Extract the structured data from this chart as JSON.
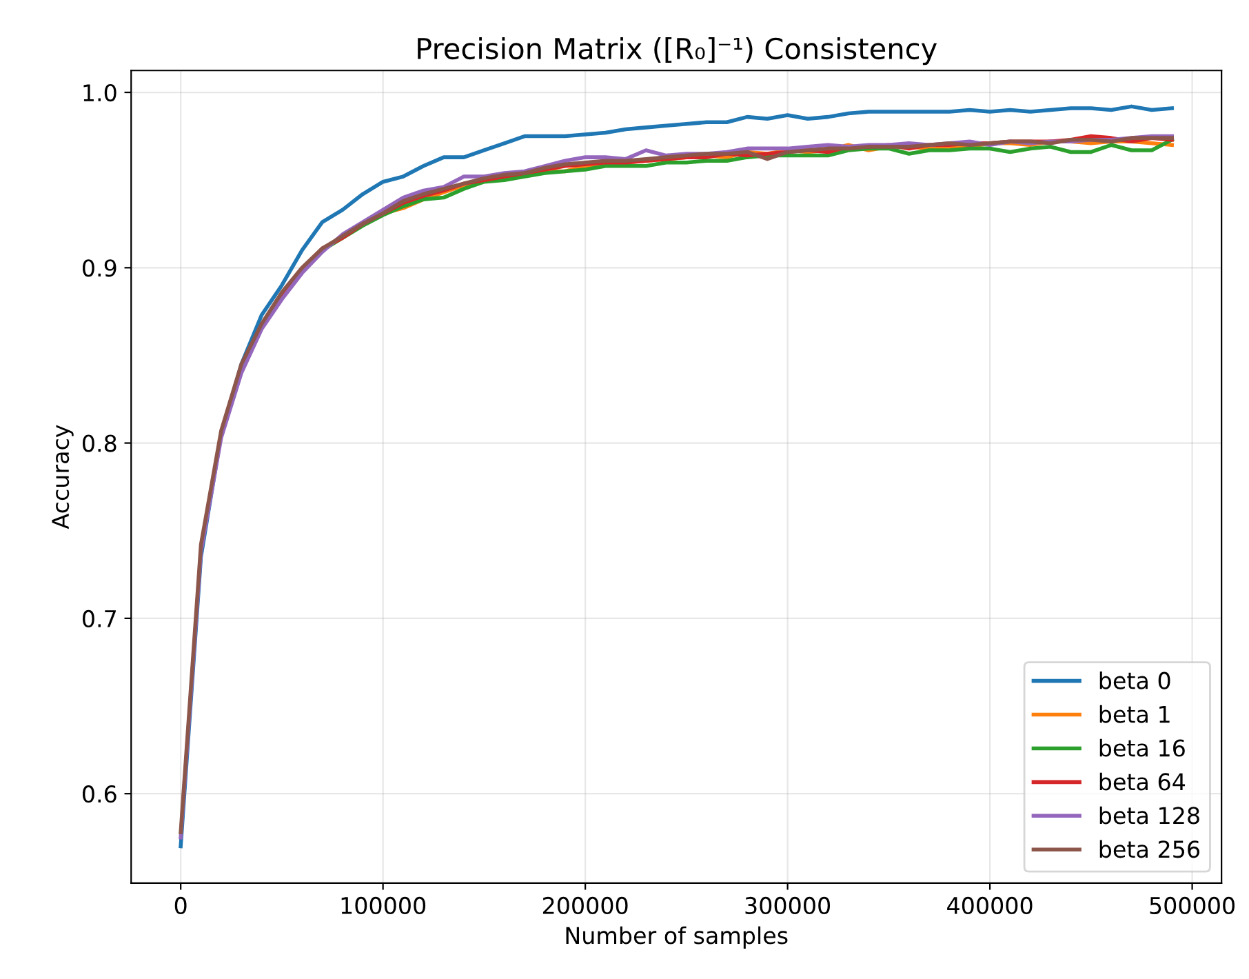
{
  "chart_data": {
    "type": "line",
    "title": "Precision Matrix ([R₀]⁻¹) Consistency",
    "xlabel": "Number of samples",
    "ylabel": "Accuracy",
    "x": [
      0,
      10000,
      20000,
      30000,
      40000,
      50000,
      60000,
      70000,
      80000,
      90000,
      100000,
      110000,
      120000,
      130000,
      140000,
      150000,
      160000,
      170000,
      180000,
      190000,
      200000,
      210000,
      220000,
      230000,
      240000,
      250000,
      260000,
      270000,
      280000,
      290000,
      300000,
      310000,
      320000,
      330000,
      340000,
      350000,
      360000,
      370000,
      380000,
      390000,
      400000,
      410000,
      420000,
      430000,
      440000,
      450000,
      460000,
      470000,
      480000,
      490000
    ],
    "series": [
      {
        "name": "beta 0",
        "color": "#1f77b4",
        "values": [
          0.57,
          0.735,
          0.805,
          0.845,
          0.873,
          0.89,
          0.91,
          0.926,
          0.933,
          0.942,
          0.949,
          0.952,
          0.958,
          0.963,
          0.963,
          0.967,
          0.971,
          0.975,
          0.975,
          0.975,
          0.976,
          0.977,
          0.979,
          0.98,
          0.981,
          0.982,
          0.983,
          0.983,
          0.986,
          0.985,
          0.987,
          0.985,
          0.986,
          0.988,
          0.989,
          0.989,
          0.989,
          0.989,
          0.989,
          0.99,
          0.989,
          0.99,
          0.989,
          0.99,
          0.991,
          0.991,
          0.99,
          0.992,
          0.99,
          0.991
        ]
      },
      {
        "name": "beta 1",
        "color": "#ff7f0e",
        "values": [
          null,
          null,
          null,
          null,
          null,
          null,
          null,
          null,
          null,
          0.925,
          0.931,
          0.934,
          0.939,
          0.943,
          0.947,
          0.95,
          0.951,
          0.953,
          0.955,
          0.955,
          0.958,
          0.959,
          0.96,
          0.961,
          0.962,
          0.963,
          0.964,
          0.963,
          0.966,
          0.965,
          0.967,
          0.966,
          0.967,
          0.97,
          0.967,
          0.969,
          0.969,
          0.968,
          0.969,
          0.969,
          0.971,
          0.971,
          0.97,
          0.972,
          0.972,
          0.971,
          0.972,
          0.972,
          0.971,
          0.97
        ]
      },
      {
        "name": "beta 16",
        "color": "#2ca02c",
        "values": [
          null,
          null,
          null,
          null,
          null,
          null,
          0.898,
          0.91,
          0.917,
          0.924,
          0.93,
          0.935,
          0.939,
          0.94,
          0.945,
          0.949,
          0.95,
          0.952,
          0.954,
          0.955,
          0.956,
          0.958,
          0.958,
          0.958,
          0.96,
          0.96,
          0.961,
          0.961,
          0.963,
          0.964,
          0.964,
          0.964,
          0.964,
          0.967,
          0.968,
          0.968,
          0.965,
          0.967,
          0.967,
          0.968,
          0.968,
          0.966,
          0.968,
          0.969,
          0.966,
          0.966,
          0.97,
          0.967,
          0.967,
          0.973
        ]
      },
      {
        "name": "beta 64",
        "color": "#d62728",
        "values": [
          null,
          null,
          null,
          null,
          0.867,
          0.885,
          0.899,
          0.911,
          0.917,
          0.925,
          0.931,
          0.937,
          0.941,
          0.944,
          0.948,
          0.95,
          0.952,
          0.954,
          0.956,
          0.958,
          0.959,
          0.96,
          0.96,
          0.961,
          0.962,
          0.963,
          0.963,
          0.965,
          0.964,
          0.965,
          0.966,
          0.967,
          0.966,
          0.969,
          0.969,
          0.97,
          0.968,
          0.97,
          0.97,
          0.971,
          0.971,
          0.972,
          0.972,
          0.972,
          0.973,
          0.975,
          0.974,
          0.972,
          0.974,
          0.973
        ]
      },
      {
        "name": "beta 128",
        "color": "#9467bd",
        "values": [
          0.575,
          0.738,
          0.803,
          0.84,
          0.865,
          0.882,
          0.897,
          0.909,
          0.919,
          0.926,
          0.933,
          0.94,
          0.944,
          0.946,
          0.952,
          0.952,
          0.954,
          0.955,
          0.958,
          0.961,
          0.963,
          0.963,
          0.962,
          0.967,
          0.964,
          0.965,
          0.965,
          0.966,
          0.968,
          0.968,
          0.968,
          0.969,
          0.97,
          0.969,
          0.97,
          0.97,
          0.971,
          0.97,
          0.971,
          0.972,
          0.97,
          0.972,
          0.971,
          0.972,
          0.972,
          0.973,
          0.973,
          0.974,
          0.975,
          0.975
        ]
      },
      {
        "name": "beta 256",
        "color": "#8c564b",
        "values": [
          0.578,
          0.742,
          0.807,
          0.845,
          0.868,
          0.886,
          0.9,
          0.911,
          0.918,
          0.925,
          0.931,
          0.938,
          0.942,
          0.945,
          0.948,
          0.951,
          0.953,
          0.954,
          0.957,
          0.959,
          0.96,
          0.961,
          0.961,
          0.962,
          0.963,
          0.964,
          0.965,
          0.965,
          0.966,
          0.962,
          0.966,
          0.967,
          0.968,
          0.968,
          0.969,
          0.969,
          0.969,
          0.97,
          0.971,
          0.97,
          0.971,
          0.972,
          0.972,
          0.971,
          0.973,
          0.973,
          0.972,
          0.974,
          0.974,
          0.974
        ]
      }
    ],
    "xlim": [
      -24500,
      514500
    ],
    "ylim": [
      0.549,
      1.0125
    ],
    "xticks": [
      0,
      100000,
      200000,
      300000,
      400000,
      500000
    ],
    "yticks": [
      {
        "value": 0.6,
        "label": "0.6"
      },
      {
        "value": 0.7,
        "label": "0.7"
      },
      {
        "value": 0.8,
        "label": "0.8"
      },
      {
        "value": 0.9,
        "label": "0.9"
      },
      {
        "value": 1.0,
        "label": "1.0"
      }
    ],
    "grid": true,
    "legend": "bottom right",
    "line_style": "solid",
    "marker": "none"
  }
}
